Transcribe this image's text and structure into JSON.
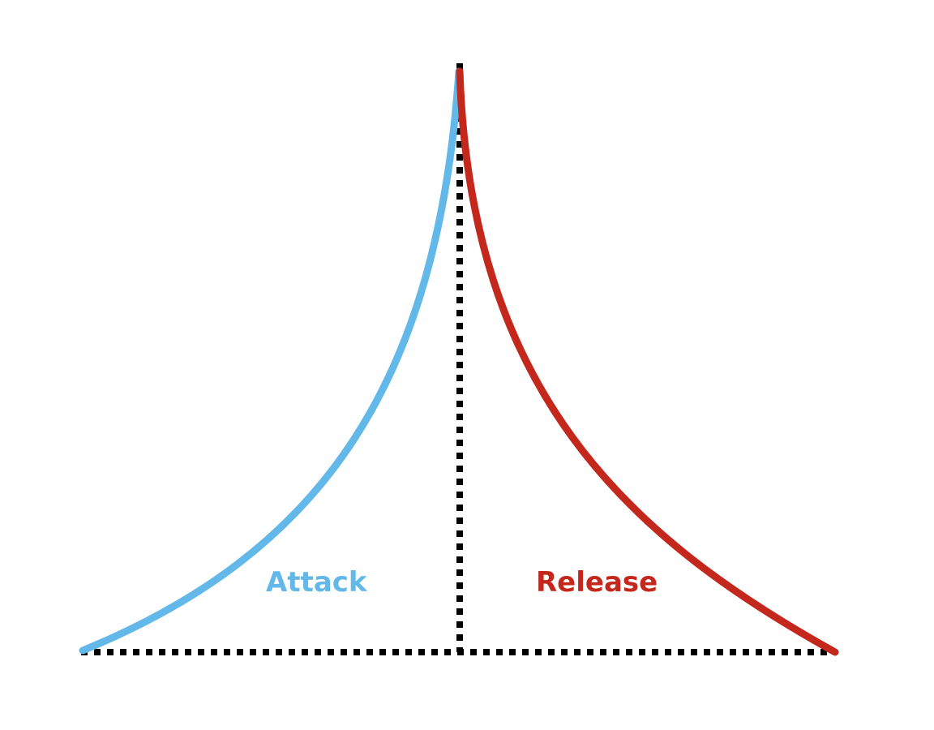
{
  "diagram": {
    "attack": {
      "label": "Attack",
      "color": "#63b8ea"
    },
    "release": {
      "label": "Release",
      "color": "#c4271b"
    },
    "guide_color": "#000000",
    "background": "#ffffff"
  }
}
